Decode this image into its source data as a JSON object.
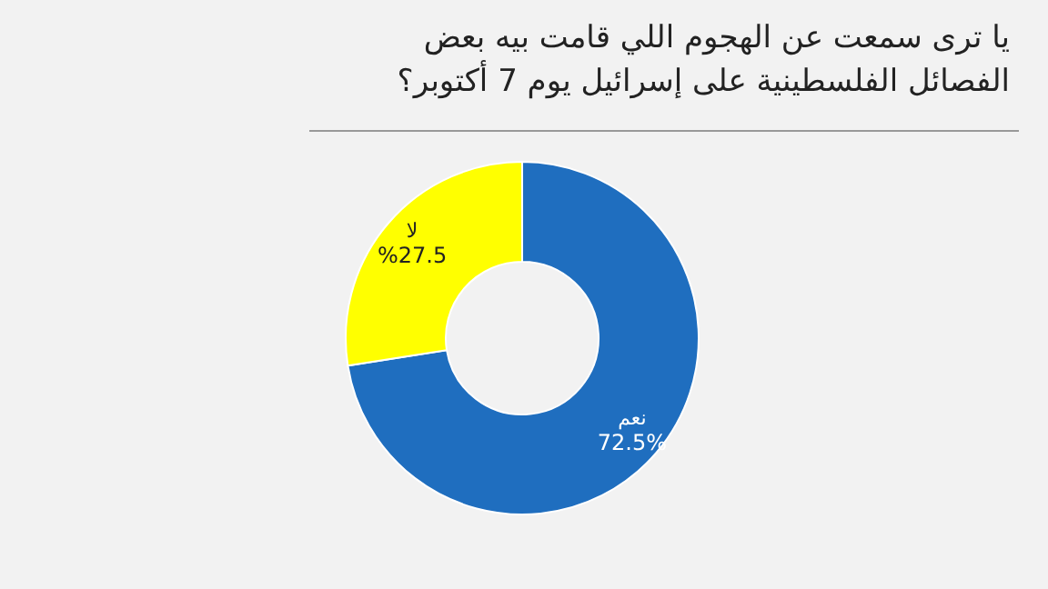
{
  "chart_data": {
    "type": "donut",
    "title": "يا ترى سمعت عن الهجوم اللي قامت بيه بعض الفصائل الفلسطينية على إسرائيل يوم 7 أكتوبر؟",
    "categories": [
      "نعم",
      "لا"
    ],
    "values": [
      72.5,
      27.5
    ],
    "colors": [
      "#1f6ebf",
      "#ffff00"
    ],
    "value_labels": [
      "72.5%",
      "%27.5"
    ]
  }
}
